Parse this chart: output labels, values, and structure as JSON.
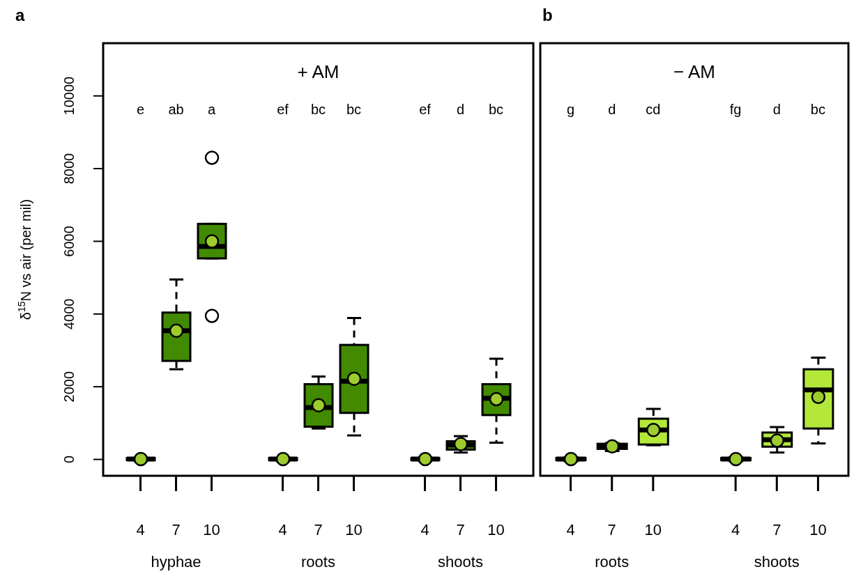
{
  "chart_data": [
    {
      "type": "box",
      "title": "a",
      "subtitle": "+ AM",
      "ylabel": "δ$^{15}$N vs air (per mil)",
      "categories": [
        "4",
        "7",
        "10",
        null,
        "4",
        "7",
        "10",
        null,
        "4",
        "7",
        "10"
      ],
      "ylim": [
        -450,
        11450
      ],
      "yticks": [
        0,
        2000,
        4000,
        6000,
        8000,
        10000
      ],
      "grid": false,
      "legend": false,
      "annotations": [
        "e",
        "ab",
        "a",
        "ef",
        "bc",
        "bc",
        "ef",
        "d",
        "bc",
        "hyphae",
        "roots",
        "shoots"
      ],
      "series": [
        {
          "color": "#428a00",
          "boxes": [
            {
              "low": -50,
              "q1": -20,
              "median": 10,
              "q3": 40,
              "high": 60,
              "mean": 10
            },
            {
              "low": 2480,
              "q1": 2710,
              "median": 3540,
              "q3": 4040,
              "high": 4950,
              "mean": 3540
            },
            {
              "low": 5530,
              "q1": 5530,
              "median": 5860,
              "q3": 6480,
              "high": 6480,
              "mean": 6000,
              "outliers": [
                8300,
                3950
              ]
            },
            null,
            {
              "low": -50,
              "q1": -20,
              "median": 10,
              "q3": 40,
              "high": 60,
              "mean": 10
            },
            {
              "low": 850,
              "q1": 900,
              "median": 1430,
              "q3": 2070,
              "high": 2280,
              "mean": 1490
            },
            {
              "low": 660,
              "q1": 1280,
              "median": 2150,
              "q3": 3150,
              "high": 3890,
              "mean": 2220
            },
            null,
            {
              "low": -50,
              "q1": -20,
              "median": 10,
              "q3": 40,
              "high": 60,
              "mean": 10
            },
            {
              "low": 190,
              "q1": 270,
              "median": 400,
              "q3": 500,
              "high": 640,
              "mean": 420
            },
            {
              "low": 460,
              "q1": 1220,
              "median": 1680,
              "q3": 2070,
              "high": 2770,
              "mean": 1660
            }
          ]
        }
      ]
    },
    {
      "type": "box",
      "title": "b",
      "subtitle": "− AM",
      "categories": [
        "4",
        "7",
        "10",
        null,
        "4",
        "7",
        "10"
      ],
      "ylim": [
        -450,
        11450
      ],
      "yticks": [
        0,
        2000,
        4000,
        6000,
        8000,
        10000
      ],
      "tick_labels": "x",
      "grid": false,
      "legend": false,
      "annotations": [
        "g",
        "d",
        "cd",
        "fg",
        "d",
        "bc",
        "roots",
        "shoots"
      ],
      "series": [
        {
          "color": "#b3e83a",
          "boxes": [
            {
              "low": -50,
              "q1": -20,
              "median": 10,
              "q3": 40,
              "high": 60,
              "mean": 10
            },
            {
              "low": 230,
              "q1": 290,
              "median": 370,
              "q3": 430,
              "high": 450,
              "mean": 360
            },
            {
              "low": 390,
              "q1": 410,
              "median": 810,
              "q3": 1120,
              "high": 1390,
              "mean": 810
            },
            null,
            {
              "low": -50,
              "q1": -20,
              "median": 10,
              "q3": 40,
              "high": 60,
              "mean": 10
            },
            {
              "low": 190,
              "q1": 350,
              "median": 540,
              "q3": 740,
              "high": 890,
              "mean": 520
            },
            {
              "low": 440,
              "q1": 850,
              "median": 1910,
              "q3": 2480,
              "high": 2800,
              "mean": 1720
            }
          ]
        }
      ]
    }
  ]
}
